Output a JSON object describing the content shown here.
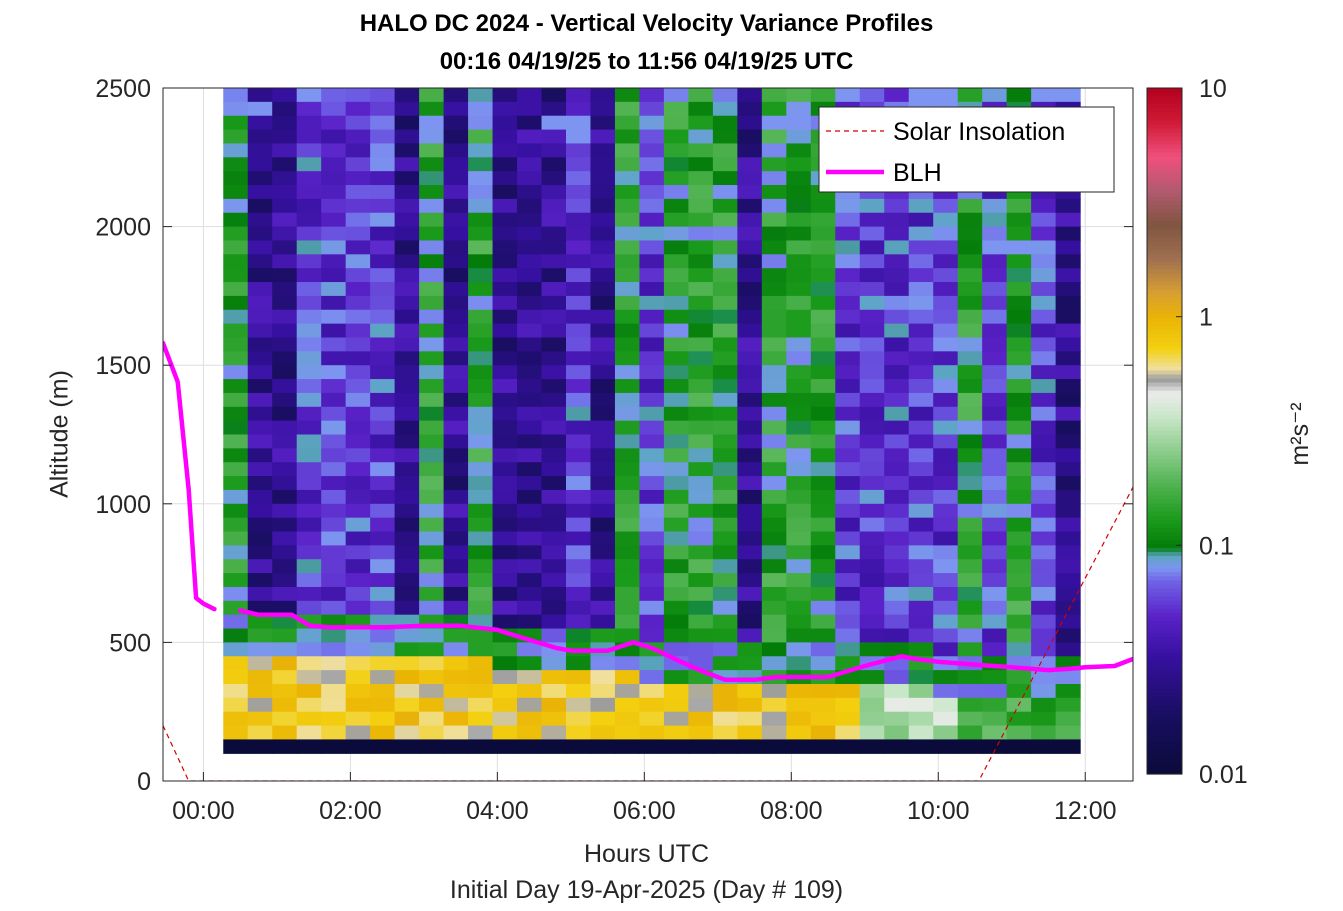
{
  "chart_data": {
    "type": "heatmap",
    "title": "HALO DC 2024 - Vertical Velocity Variance Profiles",
    "subtitle": "00:16 04/19/25 to 11:56 04/19/25  UTC",
    "xlabel": "Hours UTC",
    "footer": "Initial Day 19-Apr-2025 (Day # 109)",
    "ylabel": "Altitude (m)",
    "colorbar_label": "m²s⁻²",
    "colorbar_scale": "log",
    "colorbar_range": [
      0.01,
      10
    ],
    "colorbar_ticks": [
      "0.01",
      "0.1",
      "1",
      "10"
    ],
    "xlim_hours": [
      -0.55,
      12.65
    ],
    "ylim": [
      0,
      2500
    ],
    "xticks": [
      {
        "value": 0,
        "label": "00:00"
      },
      {
        "value": 2,
        "label": "02:00"
      },
      {
        "value": 4,
        "label": "04:00"
      },
      {
        "value": 6,
        "label": "06:00"
      },
      {
        "value": 8,
        "label": "08:00"
      },
      {
        "value": 10,
        "label": "10:00"
      },
      {
        "value": 12,
        "label": "12:00"
      }
    ],
    "yticks": [
      0,
      500,
      1000,
      1500,
      2000,
      2500
    ],
    "grid": true,
    "legend_position": "top-right",
    "heatmap": {
      "x_start_hours": 0.27,
      "x_end_hours": 11.93,
      "columns": 35,
      "altitude_bottom_m": 100,
      "altitude_top_m": 2500,
      "gate_m": 50
    },
    "series": [
      {
        "name": "Solar Insolation",
        "style": "dashed",
        "color": "#d40000",
        "x": [
          -0.55,
          -0.2,
          10.55,
          12.65
        ],
        "y": [
          200,
          0,
          0,
          1060
        ]
      },
      {
        "name": "BLH",
        "style": "solid",
        "color": "#ff00ff",
        "segments": [
          {
            "x": [
              -0.55,
              -0.35,
              -0.2,
              -0.1,
              0.0,
              0.15
            ],
            "y": [
              1580,
              1440,
              1050,
              660,
              640,
              620
            ]
          },
          {
            "x": [
              0.5,
              0.75,
              1.0,
              1.2,
              1.45,
              1.7,
              2.0,
              2.5,
              3.0,
              3.5,
              4.0,
              4.3,
              4.55,
              4.8,
              5.0,
              5.5,
              5.85,
              6.1,
              6.5,
              6.8,
              7.1,
              7.5,
              7.8,
              8.0,
              8.5,
              9.0,
              9.5,
              9.7,
              10.0,
              10.5,
              11.0,
              11.5,
              11.8,
              12.0,
              12.4,
              12.65
            ],
            "y": [
              615,
              600,
              600,
              600,
              560,
              555,
              555,
              555,
              560,
              560,
              545,
              520,
              500,
              480,
              470,
              470,
              500,
              480,
              430,
              395,
              365,
              365,
              375,
              375,
              375,
              415,
              450,
              440,
              430,
              420,
              410,
              400,
              405,
              410,
              415,
              440
            ]
          }
        ]
      }
    ],
    "legend": [
      {
        "label": "Solar Insolation",
        "style": "dashed",
        "color": "#d40000"
      },
      {
        "label": "BLH",
        "style": "solid",
        "color": "#ff00ff"
      }
    ]
  }
}
